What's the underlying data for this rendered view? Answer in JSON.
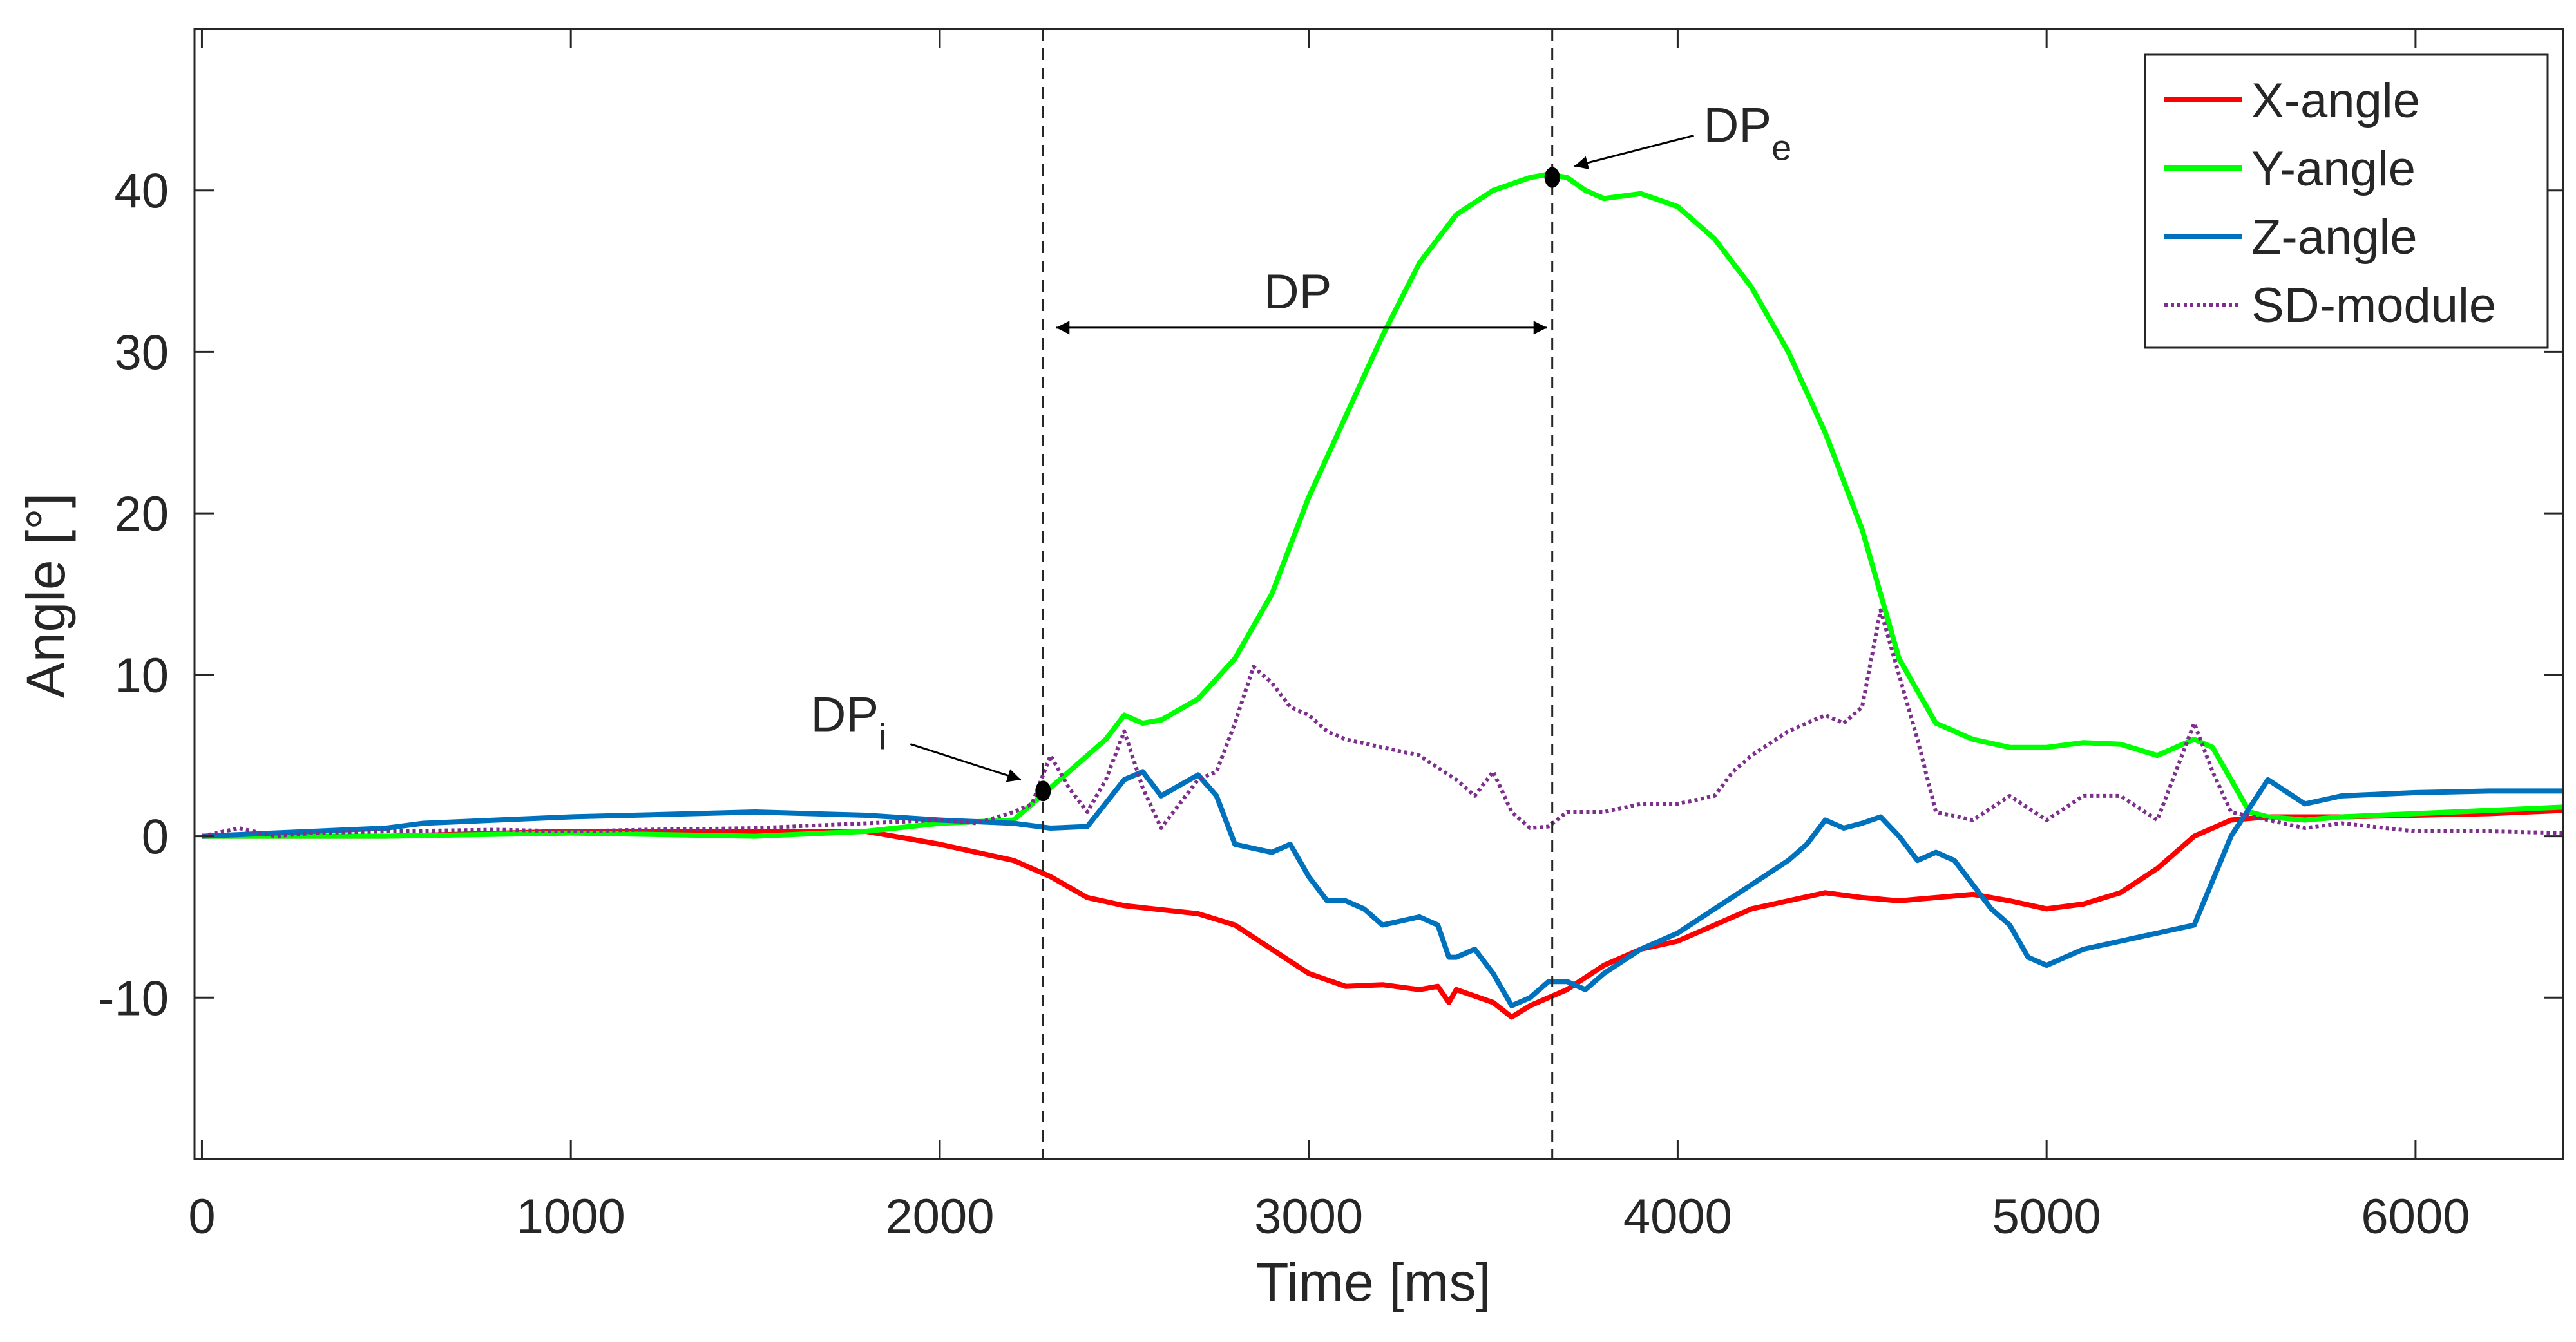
{
  "chart_data": {
    "type": "line",
    "title": "",
    "xlabel": "Time [ms]",
    "ylabel": "Angle [°]",
    "xlim": [
      -20,
      6400
    ],
    "ylim": [
      -20,
      50
    ],
    "xticks": [
      0,
      1000,
      2000,
      3000,
      4000,
      5000,
      6000
    ],
    "yticks": [
      -10,
      0,
      10,
      20,
      30,
      40
    ],
    "xtick_labels": [
      "0",
      "1000",
      "2000",
      "3000",
      "4000",
      "5000",
      "6000"
    ],
    "ytick_labels": [
      "-10",
      "0",
      "10",
      "20",
      "30",
      "40"
    ],
    "grid": false,
    "legend_position": "top-right",
    "series": [
      {
        "name": "X-angle",
        "color": "#ff0000",
        "style": "solid",
        "points": [
          [
            0,
            0
          ],
          [
            500,
            0
          ],
          [
            1000,
            0.3
          ],
          [
            1500,
            0.3
          ],
          [
            1800,
            0.3
          ],
          [
            2000,
            -0.5
          ],
          [
            2200,
            -1.5
          ],
          [
            2300,
            -2.5
          ],
          [
            2400,
            -3.8
          ],
          [
            2500,
            -4.3
          ],
          [
            2700,
            -4.8
          ],
          [
            2800,
            -5.5
          ],
          [
            2900,
            -7
          ],
          [
            3000,
            -8.5
          ],
          [
            3100,
            -9.3
          ],
          [
            3200,
            -9.2
          ],
          [
            3300,
            -9.5
          ],
          [
            3350,
            -9.3
          ],
          [
            3380,
            -10.3
          ],
          [
            3400,
            -9.5
          ],
          [
            3500,
            -10.3
          ],
          [
            3550,
            -11.2
          ],
          [
            3600,
            -10.5
          ],
          [
            3700,
            -9.5
          ],
          [
            3800,
            -8
          ],
          [
            3900,
            -7
          ],
          [
            4000,
            -6.5
          ],
          [
            4100,
            -5.5
          ],
          [
            4200,
            -4.5
          ],
          [
            4300,
            -4
          ],
          [
            4400,
            -3.5
          ],
          [
            4500,
            -3.8
          ],
          [
            4600,
            -4
          ],
          [
            4800,
            -3.6
          ],
          [
            4900,
            -4
          ],
          [
            5000,
            -4.5
          ],
          [
            5100,
            -4.2
          ],
          [
            5200,
            -3.5
          ],
          [
            5300,
            -2
          ],
          [
            5400,
            0
          ],
          [
            5500,
            1
          ],
          [
            5600,
            1.2
          ],
          [
            5800,
            1.2
          ],
          [
            6000,
            1.3
          ],
          [
            6200,
            1.4
          ],
          [
            6400,
            1.6
          ]
        ]
      },
      {
        "name": "Y-angle",
        "color": "#00ff00",
        "style": "solid",
        "points": [
          [
            0,
            0
          ],
          [
            500,
            0
          ],
          [
            1000,
            0.2
          ],
          [
            1500,
            0
          ],
          [
            1800,
            0.3
          ],
          [
            2000,
            0.8
          ],
          [
            2200,
            1
          ],
          [
            2300,
            3
          ],
          [
            2400,
            5
          ],
          [
            2450,
            6
          ],
          [
            2500,
            7.5
          ],
          [
            2550,
            7
          ],
          [
            2600,
            7.2
          ],
          [
            2700,
            8.5
          ],
          [
            2800,
            11
          ],
          [
            2900,
            15
          ],
          [
            3000,
            21
          ],
          [
            3100,
            26
          ],
          [
            3200,
            31
          ],
          [
            3300,
            35.5
          ],
          [
            3400,
            38.5
          ],
          [
            3500,
            40
          ],
          [
            3600,
            40.8
          ],
          [
            3650,
            41
          ],
          [
            3700,
            40.8
          ],
          [
            3750,
            40
          ],
          [
            3800,
            39.5
          ],
          [
            3900,
            39.8
          ],
          [
            4000,
            39
          ],
          [
            4100,
            37
          ],
          [
            4200,
            34
          ],
          [
            4300,
            30
          ],
          [
            4400,
            25
          ],
          [
            4500,
            19
          ],
          [
            4600,
            11
          ],
          [
            4700,
            7
          ],
          [
            4800,
            6
          ],
          [
            4900,
            5.5
          ],
          [
            5000,
            5.5
          ],
          [
            5100,
            5.8
          ],
          [
            5200,
            5.7
          ],
          [
            5300,
            5
          ],
          [
            5400,
            6
          ],
          [
            5450,
            5.5
          ],
          [
            5500,
            3.5
          ],
          [
            5550,
            1.5
          ],
          [
            5600,
            1.2
          ],
          [
            5700,
            1
          ],
          [
            5800,
            1.2
          ],
          [
            6000,
            1.4
          ],
          [
            6200,
            1.6
          ],
          [
            6400,
            1.8
          ]
        ]
      },
      {
        "name": "Z-angle",
        "color": "#0072bd",
        "style": "solid",
        "points": [
          [
            0,
            0
          ],
          [
            500,
            0.5
          ],
          [
            600,
            0.8
          ],
          [
            1000,
            1.2
          ],
          [
            1500,
            1.5
          ],
          [
            1800,
            1.3
          ],
          [
            2000,
            1
          ],
          [
            2200,
            0.8
          ],
          [
            2300,
            0.5
          ],
          [
            2400,
            0.6
          ],
          [
            2500,
            3.5
          ],
          [
            2550,
            4
          ],
          [
            2600,
            2.5
          ],
          [
            2700,
            3.8
          ],
          [
            2750,
            2.5
          ],
          [
            2800,
            -0.5
          ],
          [
            2900,
            -1
          ],
          [
            2950,
            -0.5
          ],
          [
            3000,
            -2.5
          ],
          [
            3050,
            -4
          ],
          [
            3100,
            -4
          ],
          [
            3150,
            -4.5
          ],
          [
            3200,
            -5.5
          ],
          [
            3300,
            -5
          ],
          [
            3350,
            -5.5
          ],
          [
            3380,
            -7.5
          ],
          [
            3400,
            -7.5
          ],
          [
            3450,
            -7
          ],
          [
            3500,
            -8.5
          ],
          [
            3550,
            -10.5
          ],
          [
            3600,
            -10
          ],
          [
            3650,
            -9
          ],
          [
            3700,
            -9
          ],
          [
            3750,
            -9.5
          ],
          [
            3800,
            -8.5
          ],
          [
            3900,
            -7
          ],
          [
            4000,
            -6
          ],
          [
            4100,
            -4.5
          ],
          [
            4200,
            -3
          ],
          [
            4300,
            -1.5
          ],
          [
            4350,
            -0.5
          ],
          [
            4400,
            1
          ],
          [
            4450,
            0.5
          ],
          [
            4500,
            0.8
          ],
          [
            4550,
            1.2
          ],
          [
            4600,
            0
          ],
          [
            4650,
            -1.5
          ],
          [
            4700,
            -1
          ],
          [
            4750,
            -1.5
          ],
          [
            4800,
            -3
          ],
          [
            4850,
            -4.5
          ],
          [
            4900,
            -5.5
          ],
          [
            4950,
            -7.5
          ],
          [
            5000,
            -8
          ],
          [
            5100,
            -7
          ],
          [
            5200,
            -6.5
          ],
          [
            5300,
            -6
          ],
          [
            5400,
            -5.5
          ],
          [
            5500,
            0
          ],
          [
            5600,
            3.5
          ],
          [
            5700,
            2
          ],
          [
            5800,
            2.5
          ],
          [
            5900,
            2.6
          ],
          [
            6000,
            2.7
          ],
          [
            6200,
            2.8
          ],
          [
            6400,
            2.8
          ]
        ]
      },
      {
        "name": "SD-module",
        "color": "#7e2f8e",
        "style": "dotted",
        "points": [
          [
            0,
            0
          ],
          [
            100,
            0.5
          ],
          [
            200,
            0
          ],
          [
            300,
            0.2
          ],
          [
            500,
            0.3
          ],
          [
            800,
            0.4
          ],
          [
            1000,
            0.3
          ],
          [
            1200,
            0.4
          ],
          [
            1500,
            0.5
          ],
          [
            1800,
            0.8
          ],
          [
            2000,
            1
          ],
          [
            2100,
            0.8
          ],
          [
            2200,
            1.5
          ],
          [
            2250,
            2
          ],
          [
            2300,
            5
          ],
          [
            2350,
            3
          ],
          [
            2400,
            1.5
          ],
          [
            2450,
            3.5
          ],
          [
            2500,
            6.5
          ],
          [
            2550,
            3
          ],
          [
            2600,
            0.5
          ],
          [
            2650,
            2
          ],
          [
            2700,
            3.5
          ],
          [
            2750,
            4
          ],
          [
            2800,
            7
          ],
          [
            2850,
            10.5
          ],
          [
            2900,
            9.5
          ],
          [
            2950,
            8
          ],
          [
            3000,
            7.5
          ],
          [
            3050,
            6.5
          ],
          [
            3100,
            6
          ],
          [
            3200,
            5.5
          ],
          [
            3300,
            5
          ],
          [
            3400,
            3.5
          ],
          [
            3450,
            2.5
          ],
          [
            3500,
            4
          ],
          [
            3550,
            1.5
          ],
          [
            3600,
            0.5
          ],
          [
            3650,
            0.6
          ],
          [
            3700,
            1.5
          ],
          [
            3800,
            1.5
          ],
          [
            3900,
            2
          ],
          [
            4000,
            2
          ],
          [
            4100,
            2.5
          ],
          [
            4150,
            4
          ],
          [
            4200,
            5
          ],
          [
            4300,
            6.5
          ],
          [
            4400,
            7.5
          ],
          [
            4450,
            7
          ],
          [
            4500,
            8
          ],
          [
            4550,
            14
          ],
          [
            4600,
            10
          ],
          [
            4650,
            6
          ],
          [
            4700,
            1.5
          ],
          [
            4800,
            1
          ],
          [
            4900,
            2.5
          ],
          [
            5000,
            1
          ],
          [
            5100,
            2.5
          ],
          [
            5200,
            2.5
          ],
          [
            5300,
            1
          ],
          [
            5400,
            7
          ],
          [
            5450,
            4
          ],
          [
            5500,
            1.5
          ],
          [
            5600,
            1
          ],
          [
            5700,
            0.5
          ],
          [
            5800,
            0.8
          ],
          [
            6000,
            0.3
          ],
          [
            6200,
            0.3
          ],
          [
            6400,
            0.2
          ]
        ]
      }
    ],
    "markers": [
      {
        "name": "dp-i-marker",
        "x": 2280,
        "y": 2.8
      },
      {
        "name": "dp-e-marker",
        "x": 3660,
        "y": 40.8
      }
    ],
    "vertical_lines": [
      2280,
      3660
    ],
    "annotations": [
      {
        "name": "dp-span",
        "text": "DP",
        "x_from": 2280,
        "x_to": 3660,
        "y": 31.5
      },
      {
        "name": "dp-i",
        "text": "DP",
        "subscript": "i",
        "text_x": 1650,
        "text_y": 6.5,
        "arrow_to_x": 2220,
        "arrow_to_y": 3.5
      },
      {
        "name": "dp-e",
        "text": "DP",
        "subscript": "e",
        "text_x": 4070,
        "text_y": 43,
        "arrow_to_x": 3720,
        "arrow_to_y": 41.5
      }
    ]
  }
}
